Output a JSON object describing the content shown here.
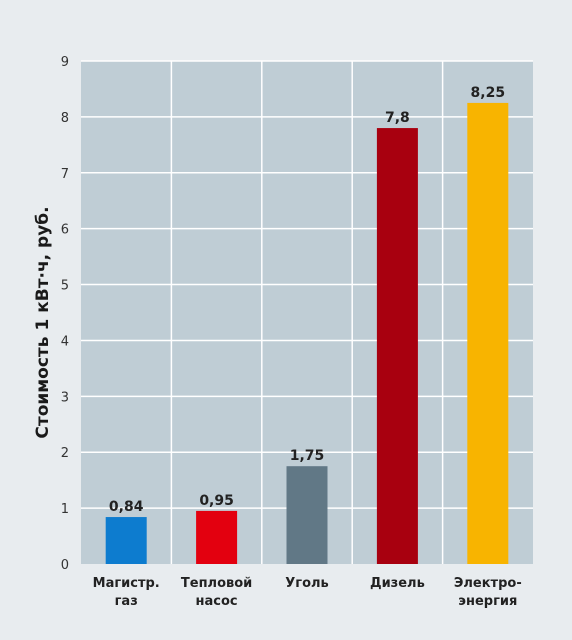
{
  "chart_data": {
    "type": "bar",
    "title": "",
    "xlabel": "",
    "ylabel": "Стоимость 1 кВт·ч, руб.",
    "ylim": [
      0,
      9
    ],
    "yticks": [
      0,
      1,
      2,
      3,
      4,
      5,
      6,
      7,
      8,
      9
    ],
    "grid": true,
    "legend": "none",
    "categories": [
      [
        "Магистр.",
        "газ"
      ],
      [
        "Тепловой",
        "насос"
      ],
      [
        "Уголь"
      ],
      [
        "Дизель"
      ],
      [
        "Электро-",
        "энергия"
      ]
    ],
    "values": [
      0.84,
      0.95,
      1.75,
      7.8,
      8.25
    ],
    "value_labels": [
      "0,84",
      "0,95",
      "1,75",
      "7,8",
      "8,25"
    ],
    "colors": [
      "#0d7ccf",
      "#e3000f",
      "#617886",
      "#a8000f",
      "#f8b400"
    ],
    "plot_background": "#bfcdd5",
    "grid_color": "#ffffff"
  }
}
